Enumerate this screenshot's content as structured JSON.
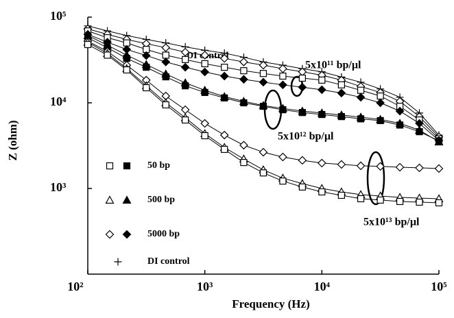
{
  "chart_data": {
    "type": "line",
    "xlabel": "Frequency (Hz)",
    "ylabel": "Z (ohm)",
    "xscale": "log",
    "yscale": "log",
    "xlim": [
      100,
      100000
    ],
    "ylim": [
      100,
      100000
    ],
    "xticks": [
      {
        "value": 100,
        "label": "10²"
      },
      {
        "value": 1000,
        "label": "10³"
      },
      {
        "value": 10000,
        "label": "10⁴"
      },
      {
        "value": 100000,
        "label": "10⁵"
      }
    ],
    "yticks": [
      {
        "value": 1000,
        "label": "10³"
      },
      {
        "value": 10000,
        "label": "10⁴"
      },
      {
        "value": 100000,
        "label": "10⁵"
      }
    ],
    "color": "#000000",
    "x": [
      100,
      147,
      215,
      316,
      464,
      681,
      1000,
      1470,
      2150,
      3160,
      4640,
      6810,
      10000,
      14700,
      21500,
      31600,
      46400,
      68100,
      100000
    ],
    "series": [
      {
        "marker": "plus",
        "filled": false,
        "values": [
          79000,
          69000,
          61000,
          55000,
          50000,
          45000,
          41000,
          38000,
          34000,
          30000,
          27500,
          25000,
          23000,
          20000,
          17400,
          14500,
          11600,
          7600,
          4200
        ]
      },
      {
        "marker": "diamond",
        "filled": false,
        "values": [
          73000,
          63000,
          55000,
          49000,
          44000,
          39000,
          36000,
          33000,
          30000,
          27500,
          25000,
          23000,
          21000,
          18400,
          15500,
          13200,
          10400,
          6900,
          4000
        ]
      },
      {
        "marker": "square",
        "filled": false,
        "values": [
          69000,
          57500,
          50000,
          42000,
          36000,
          32000,
          28600,
          26000,
          23700,
          22000,
          20500,
          19400,
          18400,
          16200,
          14000,
          12000,
          9100,
          6300,
          3800
        ]
      },
      {
        "marker": "diamond",
        "filled": true,
        "values": [
          63000,
          51000,
          42000,
          35600,
          30000,
          26000,
          22900,
          20500,
          18800,
          17400,
          16200,
          15200,
          14200,
          13000,
          11600,
          10000,
          8000,
          5750,
          3630
        ]
      },
      {
        "marker": "square",
        "filled": true,
        "values": [
          57500,
          44000,
          33000,
          26000,
          20100,
          15800,
          13200,
          11400,
          10000,
          9100,
          8300,
          7700,
          7300,
          6900,
          6500,
          6200,
          5500,
          4600,
          3600
        ]
      },
      {
        "marker": "triangle",
        "filled": true,
        "values": [
          61000,
          47000,
          36000,
          28000,
          21700,
          17100,
          14000,
          11800,
          10400,
          9300,
          8600,
          8000,
          7600,
          7200,
          6800,
          6400,
          5750,
          4800,
          3500
        ]
      },
      {
        "marker": "diamond",
        "filled": false,
        "values": [
          52500,
          39800,
          27500,
          18400,
          12000,
          8300,
          5750,
          4200,
          3200,
          2650,
          2330,
          2130,
          1980,
          1910,
          1840,
          1810,
          1770,
          1740,
          1710
        ]
      },
      {
        "marker": "triangle",
        "filled": false,
        "values": [
          51000,
          37700,
          25100,
          15800,
          10000,
          6700,
          4370,
          3020,
          2210,
          1650,
          1320,
          1140,
          1000,
          912,
          847,
          817,
          787,
          773,
          759
        ]
      },
      {
        "marker": "square",
        "filled": false,
        "values": [
          47900,
          36000,
          24200,
          15000,
          9460,
          6300,
          4130,
          2860,
          2010,
          1520,
          1220,
          1040,
          912,
          832,
          759,
          732,
          705,
          692,
          680
        ]
      }
    ],
    "legend": [
      {
        "label": "50 bp",
        "marker": "square"
      },
      {
        "label": "500 bp",
        "marker": "triangle"
      },
      {
        "label": "5000 bp",
        "marker": "diamond"
      },
      {
        "label": "DI control",
        "marker": "plus"
      }
    ],
    "annotations": [
      "DI control",
      "5x10¹¹ bp/µl",
      "5x10¹² bp/µl",
      "5x10¹³ bp/µl"
    ]
  }
}
